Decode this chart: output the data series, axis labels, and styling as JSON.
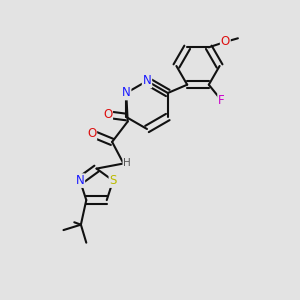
{
  "bg": "#e3e3e3",
  "bc": "#111111",
  "lw": 1.5,
  "fs": 7.5,
  "figsize": [
    3.0,
    3.0
  ],
  "dpi": 100,
  "colors": {
    "N": "#1a1aff",
    "O": "#dd1111",
    "S": "#bbbb00",
    "F": "#cc00cc",
    "C": "#111111",
    "H": "#555555"
  }
}
